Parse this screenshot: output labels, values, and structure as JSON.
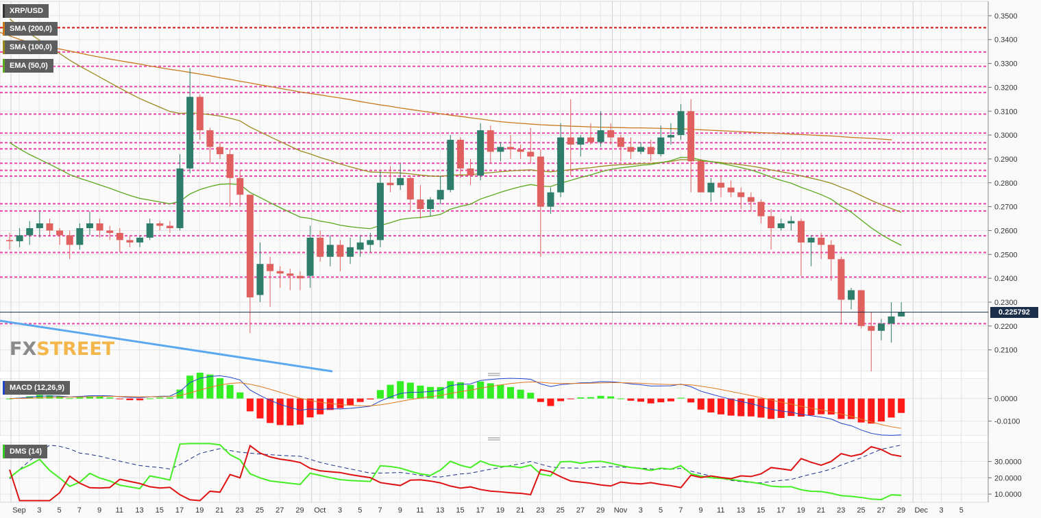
{
  "chart_data": [
    {
      "type": "candlestick",
      "symbol": "XRP/USD",
      "indicators": [
        {
          "name": "SMA (200,0)",
          "color": "#c8791e"
        },
        {
          "name": "SMA (100,0)",
          "color": "#9a8a1e"
        },
        {
          "name": "EMA (50,0)",
          "color": "#5aa81e"
        }
      ],
      "ylim": [
        0.201,
        0.356
      ],
      "yticks": [
        "0.3500",
        "0.3400",
        "0.3300",
        "0.3200",
        "0.3100",
        "0.3000",
        "0.2900",
        "0.2800",
        "0.2700",
        "0.2600",
        "0.2500",
        "0.2400",
        "0.2300",
        "0.2200",
        "0.2100"
      ],
      "ytick_values": [
        0.35,
        0.34,
        0.33,
        0.32,
        0.31,
        0.3,
        0.29,
        0.28,
        0.27,
        0.26,
        0.25,
        0.24,
        0.23,
        0.22,
        0.21
      ],
      "current_price": "0.225792",
      "current_price_value": 0.225792,
      "resistance_red": [
        0.345
      ],
      "levels_pink": [
        0.3348,
        0.3288,
        0.3203,
        0.3178,
        0.3088,
        0.3008,
        0.2968,
        0.2942,
        0.2882,
        0.2852,
        0.2828,
        0.2712,
        0.2682,
        0.2578,
        0.2508,
        0.2405,
        0.221
      ],
      "candles": [
        [
          0.256,
          0.259,
          0.252,
          0.2555
        ],
        [
          0.2555,
          0.261,
          0.253,
          0.258
        ],
        [
          0.258,
          0.264,
          0.254,
          0.261
        ],
        [
          0.261,
          0.268,
          0.257,
          0.263
        ],
        [
          0.263,
          0.265,
          0.258,
          0.26
        ],
        [
          0.26,
          0.261,
          0.254,
          0.258
        ],
        [
          0.258,
          0.26,
          0.248,
          0.254
        ],
        [
          0.254,
          0.263,
          0.252,
          0.261
        ],
        [
          0.261,
          0.268,
          0.258,
          0.263
        ],
        [
          0.263,
          0.265,
          0.257,
          0.26
        ],
        [
          0.26,
          0.262,
          0.256,
          0.259
        ],
        [
          0.259,
          0.261,
          0.251,
          0.256
        ],
        [
          0.256,
          0.258,
          0.253,
          0.255
        ],
        [
          0.255,
          0.258,
          0.253,
          0.257
        ],
        [
          0.257,
          0.265,
          0.256,
          0.263
        ],
        [
          0.263,
          0.264,
          0.26,
          0.262
        ],
        [
          0.262,
          0.264,
          0.259,
          0.261
        ],
        [
          0.261,
          0.292,
          0.26,
          0.286
        ],
        [
          0.286,
          0.328,
          0.284,
          0.316
        ],
        [
          0.316,
          0.317,
          0.298,
          0.302
        ],
        [
          0.302,
          0.303,
          0.288,
          0.295
        ],
        [
          0.295,
          0.297,
          0.29,
          0.292
        ],
        [
          0.292,
          0.294,
          0.27,
          0.282
        ],
        [
          0.282,
          0.285,
          0.27,
          0.275
        ],
        [
          0.275,
          0.275,
          0.217,
          0.232
        ],
        [
          0.233,
          0.255,
          0.23,
          0.246
        ],
        [
          0.246,
          0.249,
          0.228,
          0.243
        ],
        [
          0.243,
          0.245,
          0.236,
          0.242
        ],
        [
          0.242,
          0.244,
          0.235,
          0.241
        ],
        [
          0.241,
          0.243,
          0.235,
          0.24
        ],
        [
          0.241,
          0.262,
          0.236,
          0.257
        ],
        [
          0.257,
          0.26,
          0.247,
          0.249
        ],
        [
          0.249,
          0.258,
          0.245,
          0.254
        ],
        [
          0.254,
          0.256,
          0.243,
          0.249
        ],
        [
          0.249,
          0.257,
          0.246,
          0.253
        ],
        [
          0.252,
          0.258,
          0.249,
          0.255
        ],
        [
          0.254,
          0.259,
          0.251,
          0.256
        ],
        [
          0.256,
          0.285,
          0.253,
          0.28
        ],
        [
          0.28,
          0.287,
          0.276,
          0.279
        ],
        [
          0.279,
          0.288,
          0.277,
          0.282
        ],
        [
          0.282,
          0.283,
          0.268,
          0.273
        ],
        [
          0.273,
          0.279,
          0.265,
          0.269
        ],
        [
          0.269,
          0.274,
          0.266,
          0.273
        ],
        [
          0.273,
          0.283,
          0.271,
          0.277
        ],
        [
          0.277,
          0.3,
          0.276,
          0.298
        ],
        [
          0.298,
          0.299,
          0.282,
          0.286
        ],
        [
          0.286,
          0.29,
          0.279,
          0.283
        ],
        [
          0.283,
          0.305,
          0.281,
          0.302
        ],
        [
          0.302,
          0.304,
          0.288,
          0.293
        ],
        [
          0.293,
          0.297,
          0.289,
          0.295
        ],
        [
          0.295,
          0.3,
          0.29,
          0.294
        ],
        [
          0.294,
          0.296,
          0.29,
          0.293
        ],
        [
          0.293,
          0.303,
          0.288,
          0.291
        ],
        [
          0.291,
          0.294,
          0.249,
          0.27
        ],
        [
          0.27,
          0.278,
          0.267,
          0.276
        ],
        [
          0.276,
          0.305,
          0.274,
          0.299
        ],
        [
          0.299,
          0.315,
          0.283,
          0.296
        ],
        [
          0.296,
          0.3,
          0.291,
          0.299
        ],
        [
          0.299,
          0.305,
          0.296,
          0.297
        ],
        [
          0.297,
          0.31,
          0.295,
          0.302
        ],
        [
          0.302,
          0.305,
          0.296,
          0.299
        ],
        [
          0.299,
          0.3,
          0.289,
          0.295
        ],
        [
          0.295,
          0.299,
          0.29,
          0.293
        ],
        [
          0.293,
          0.297,
          0.292,
          0.295
        ],
        [
          0.295,
          0.298,
          0.289,
          0.292
        ],
        [
          0.292,
          0.304,
          0.291,
          0.299
        ],
        [
          0.299,
          0.305,
          0.296,
          0.3
        ],
        [
          0.3,
          0.313,
          0.298,
          0.31
        ],
        [
          0.31,
          0.315,
          0.276,
          0.289
        ],
        [
          0.289,
          0.29,
          0.276,
          0.276
        ],
        [
          0.276,
          0.282,
          0.272,
          0.28
        ],
        [
          0.28,
          0.283,
          0.274,
          0.278
        ],
        [
          0.278,
          0.281,
          0.274,
          0.276
        ],
        [
          0.276,
          0.278,
          0.269,
          0.274
        ],
        [
          0.274,
          0.276,
          0.268,
          0.272
        ],
        [
          0.272,
          0.273,
          0.263,
          0.266
        ],
        [
          0.266,
          0.269,
          0.252,
          0.261
        ],
        [
          0.261,
          0.265,
          0.26,
          0.263
        ],
        [
          0.263,
          0.266,
          0.26,
          0.264
        ],
        [
          0.264,
          0.265,
          0.241,
          0.255
        ],
        [
          0.255,
          0.258,
          0.245,
          0.257
        ],
        [
          0.257,
          0.259,
          0.248,
          0.254
        ],
        [
          0.254,
          0.256,
          0.239,
          0.248
        ],
        [
          0.248,
          0.249,
          0.221,
          0.231
        ],
        [
          0.231,
          0.236,
          0.227,
          0.235
        ],
        [
          0.235,
          0.235,
          0.219,
          0.22
        ],
        [
          0.22,
          0.226,
          0.201,
          0.218
        ],
        [
          0.218,
          0.223,
          0.214,
          0.221
        ],
        [
          0.221,
          0.23,
          0.213,
          0.224
        ],
        [
          0.224,
          0.23,
          0.224,
          0.2258
        ]
      ],
      "sma200": [
        0.343,
        0.3415,
        0.34,
        0.3388,
        0.3377,
        0.3368,
        0.336,
        0.3352,
        0.3343,
        0.3334,
        0.3326,
        0.3318,
        0.3311,
        0.3304,
        0.3297,
        0.3289,
        0.3282,
        0.3275,
        0.3269,
        0.3262,
        0.3255,
        0.3248,
        0.324,
        0.3233,
        0.3225,
        0.3218,
        0.321,
        0.3203,
        0.3195,
        0.3188,
        0.318,
        0.3174,
        0.3168,
        0.3161,
        0.3155,
        0.3148,
        0.314,
        0.3133,
        0.3126,
        0.312,
        0.3113,
        0.3107,
        0.3101,
        0.3095,
        0.3089,
        0.3083,
        0.3078,
        0.3072,
        0.3067,
        0.3061,
        0.3056,
        0.3052,
        0.3049,
        0.3046,
        0.3043,
        0.3041,
        0.3039,
        0.3037,
        0.3036,
        0.3034,
        0.3033,
        0.3032,
        0.3031,
        0.303,
        0.303,
        0.3029,
        0.3028,
        0.3027,
        0.3026,
        0.3024,
        0.3022,
        0.302,
        0.3018,
        0.3016,
        0.3014,
        0.3012,
        0.301,
        0.3008,
        0.3006,
        0.3004,
        0.3002,
        0.3,
        0.2998,
        0.2996,
        0.2993,
        0.299,
        0.2988,
        0.2986,
        0.2983,
        0.298
      ]
    },
    {
      "type": "macd",
      "name": "MACD (12,26,9)",
      "yticks": [
        "0.0000",
        "-0.0100"
      ],
      "ytick_values": [
        0.0,
        -0.01
      ],
      "ylim": [
        -0.0165,
        0.009
      ]
    },
    {
      "type": "dms",
      "name": "DMS (14)",
      "yticks": [
        "30.0000",
        "20.0000",
        "10.0000"
      ],
      "ytick_values": [
        30,
        20,
        10
      ],
      "ylim": [
        5,
        42
      ]
    }
  ],
  "x_axis": {
    "labels": [
      "Sep",
      "3",
      "5",
      "7",
      "9",
      "11",
      "13",
      "15",
      "17",
      "19",
      "21",
      "23",
      "25",
      "27",
      "29",
      "Oct",
      "3",
      "5",
      "7",
      "9",
      "11",
      "13",
      "15",
      "17",
      "19",
      "21",
      "23",
      "25",
      "27",
      "29",
      "Nov",
      "3",
      "5",
      "7",
      "9",
      "11",
      "13",
      "15",
      "17",
      "19",
      "21",
      "23",
      "25",
      "27",
      "29",
      "Dec",
      "3",
      "5"
    ]
  },
  "logo": {
    "fx": "FX",
    "street": "STREET"
  },
  "colors": {
    "bull": "#2e7d6b",
    "bear": "#e06060",
    "grid": "#e4e4e4",
    "pink": "#ee44aa",
    "red": "#dd1111",
    "trend": "#5aa8f0"
  }
}
